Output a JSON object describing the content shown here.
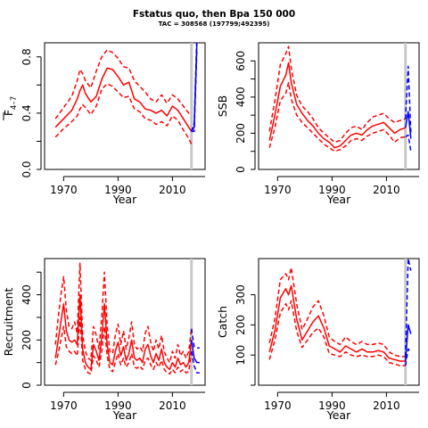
{
  "title": "Fstatus quo, then Bpa 150 000",
  "subtitle": "TAC = 308568 (197799;492395)",
  "colors": {
    "historical": "#ff0000",
    "projection": "#0000ff",
    "marker": "#c8c8c8"
  },
  "chart_data": [
    {
      "type": "line",
      "ylabel_main": "F",
      "ylabel_sub": "4–7",
      "xlabel": "Year",
      "xlim": [
        1963,
        2022
      ],
      "ylim": [
        0,
        0.9
      ],
      "xticks": [
        1970,
        1990,
        2010
      ],
      "yticks": [
        0.0,
        0.4,
        0.8
      ],
      "ytick_labels": [
        "0.0",
        "0.4",
        "0.8"
      ],
      "minor_yticks": [
        0.2,
        0.6
      ],
      "marker_year": 2017,
      "x": [
        1967,
        1970,
        1973,
        1975,
        1976,
        1977,
        1978,
        1980,
        1982,
        1984,
        1986,
        1988,
        1990,
        1992,
        1994,
        1996,
        1998,
        2000,
        2002,
        2004,
        2006,
        2008,
        2010,
        2012,
        2014,
        2016,
        2017
      ],
      "series": [
        {
          "role": "estimate",
          "values": [
            0.3,
            0.36,
            0.42,
            0.5,
            0.56,
            0.6,
            0.54,
            0.48,
            0.52,
            0.64,
            0.72,
            0.71,
            0.66,
            0.6,
            0.62,
            0.5,
            0.48,
            0.43,
            0.42,
            0.4,
            0.42,
            0.38,
            0.45,
            0.42,
            0.36,
            0.3,
            0.27
          ]
        },
        {
          "role": "upper",
          "values": [
            0.36,
            0.44,
            0.52,
            0.63,
            0.71,
            0.68,
            0.63,
            0.58,
            0.7,
            0.8,
            0.85,
            0.83,
            0.79,
            0.73,
            0.72,
            0.63,
            0.59,
            0.55,
            0.5,
            0.48,
            0.53,
            0.47,
            0.53,
            0.5,
            0.45,
            0.4,
            0.41
          ]
        },
        {
          "role": "lower",
          "values": [
            0.23,
            0.29,
            0.34,
            0.38,
            0.43,
            0.46,
            0.44,
            0.39,
            0.45,
            0.57,
            0.61,
            0.59,
            0.55,
            0.51,
            0.52,
            0.43,
            0.41,
            0.36,
            0.35,
            0.32,
            0.34,
            0.31,
            0.38,
            0.35,
            0.28,
            0.22,
            0.18
          ]
        }
      ],
      "projection": {
        "x": [
          2017,
          2018,
          2019
        ],
        "mid": [
          0.27,
          0.3,
          0.9
        ],
        "upper": [
          0.27,
          0.33,
          0.95
        ],
        "lower": [
          0.27,
          0.27,
          0.85
        ]
      }
    },
    {
      "type": "line",
      "ylabel_main": "SSB",
      "xlabel": "Year",
      "xlim": [
        1963,
        2022
      ],
      "ylim": [
        0,
        700
      ],
      "xticks": [
        1970,
        1990,
        2010
      ],
      "yticks": [
        0,
        200,
        400,
        600
      ],
      "ytick_labels": [
        "0",
        "200",
        "400",
        "600"
      ],
      "minor_yticks": [
        100,
        300,
        500
      ],
      "marker_year": 2017,
      "x": [
        1967,
        1969,
        1971,
        1973,
        1974,
        1975,
        1977,
        1979,
        1981,
        1983,
        1985,
        1987,
        1989,
        1991,
        1993,
        1995,
        1997,
        1999,
        2001,
        2003,
        2005,
        2007,
        2009,
        2011,
        2013,
        2015,
        2017
      ],
      "series": [
        {
          "role": "estimate",
          "values": [
            160,
            300,
            460,
            520,
            590,
            480,
            360,
            310,
            270,
            240,
            200,
            170,
            150,
            120,
            130,
            160,
            190,
            200,
            190,
            220,
            240,
            250,
            260,
            230,
            200,
            220,
            230
          ]
        },
        {
          "role": "upper",
          "values": [
            210,
            380,
            580,
            640,
            680,
            560,
            410,
            350,
            320,
            280,
            230,
            200,
            175,
            150,
            160,
            200,
            230,
            240,
            220,
            260,
            290,
            300,
            310,
            280,
            260,
            270,
            280
          ]
        },
        {
          "role": "lower",
          "values": [
            120,
            230,
            380,
            420,
            480,
            390,
            300,
            260,
            230,
            200,
            170,
            140,
            120,
            100,
            110,
            130,
            160,
            170,
            160,
            185,
            200,
            210,
            220,
            190,
            150,
            175,
            180
          ]
        }
      ],
      "projection": {
        "x": [
          2017,
          2018,
          2019
        ],
        "mid": [
          230,
          320,
          170
        ],
        "upper": [
          280,
          570,
          200
        ],
        "lower": [
          180,
          190,
          100
        ]
      }
    },
    {
      "type": "line",
      "ylabel_main": "Recruitment",
      "xlabel": "Year",
      "xlim": [
        1963,
        2022
      ],
      "ylim": [
        0,
        560
      ],
      "xticks": [
        1970,
        1990,
        2010
      ],
      "yticks": [
        0,
        200,
        400
      ],
      "ytick_labels": [
        "0",
        "200",
        "400"
      ],
      "minor_yticks": [
        100,
        300,
        500
      ],
      "marker_year": 2017,
      "x": [
        1967,
        1968,
        1969,
        1970,
        1971,
        1972,
        1973,
        1974,
        1975,
        1976,
        1977,
        1978,
        1979,
        1980,
        1981,
        1982,
        1983,
        1984,
        1985,
        1986,
        1987,
        1988,
        1989,
        1990,
        1991,
        1992,
        1993,
        1994,
        1995,
        1996,
        1997,
        1998,
        1999,
        2000,
        2001,
        2002,
        2003,
        2004,
        2005,
        2006,
        2007,
        2008,
        2009,
        2010,
        2011,
        2012,
        2013,
        2014,
        2015,
        2016,
        2017
      ],
      "series": [
        {
          "role": "estimate",
          "values": [
            120,
            200,
            280,
            360,
            240,
            200,
            190,
            200,
            180,
            400,
            160,
            100,
            80,
            70,
            180,
            150,
            110,
            210,
            360,
            180,
            100,
            90,
            150,
            190,
            130,
            170,
            110,
            140,
            200,
            120,
            110,
            120,
            100,
            160,
            180,
            130,
            100,
            140,
            110,
            160,
            100,
            80,
            70,
            100,
            80,
            120,
            90,
            100,
            80,
            100,
            200
          ]
        },
        {
          "role": "upper",
          "values": [
            180,
            300,
            400,
            480,
            330,
            260,
            250,
            280,
            230,
            540,
            220,
            150,
            120,
            110,
            260,
            220,
            160,
            300,
            500,
            260,
            150,
            140,
            220,
            270,
            180,
            240,
            160,
            210,
            280,
            180,
            160,
            170,
            150,
            230,
            260,
            190,
            150,
            200,
            160,
            220,
            150,
            120,
            100,
            150,
            120,
            180,
            130,
            150,
            120,
            150,
            250
          ]
        },
        {
          "role": "lower",
          "values": [
            90,
            140,
            200,
            260,
            170,
            150,
            140,
            150,
            130,
            300,
            110,
            70,
            55,
            50,
            130,
            110,
            80,
            150,
            260,
            130,
            70,
            60,
            100,
            140,
            90,
            120,
            80,
            100,
            140,
            80,
            75,
            85,
            70,
            110,
            120,
            90,
            70,
            100,
            80,
            110,
            70,
            55,
            50,
            70,
            55,
            80,
            60,
            70,
            55,
            60,
            150
          ]
        }
      ],
      "projection": {
        "x": [
          2017,
          2018,
          2019,
          2020
        ],
        "mid": [
          200,
          120,
          100,
          100
        ],
        "upper": [
          250,
          170,
          165,
          165
        ],
        "lower": [
          150,
          85,
          55,
          55
        ]
      }
    },
    {
      "type": "line",
      "ylabel_main": "Catch",
      "xlabel": "Year",
      "xlim": [
        1963,
        2022
      ],
      "ylim": [
        0,
        420
      ],
      "xticks": [
        1970,
        1990,
        2010
      ],
      "yticks": [
        100,
        200,
        300
      ],
      "ytick_labels": [
        "100",
        "200",
        "300"
      ],
      "minor_yticks": [
        0
      ],
      "marker_year": 2017,
      "x": [
        1967,
        1969,
        1971,
        1973,
        1974,
        1975,
        1977,
        1979,
        1981,
        1983,
        1985,
        1987,
        1989,
        1991,
        1993,
        1995,
        1997,
        1999,
        2001,
        2003,
        2005,
        2007,
        2009,
        2011,
        2013,
        2015,
        2017
      ],
      "series": [
        {
          "role": "estimate",
          "values": [
            110,
            180,
            290,
            320,
            300,
            330,
            220,
            150,
            180,
            210,
            230,
            190,
            130,
            120,
            110,
            130,
            120,
            110,
            120,
            110,
            110,
            115,
            110,
            90,
            85,
            80,
            80
          ]
        },
        {
          "role": "upper",
          "values": [
            140,
            220,
            350,
            370,
            350,
            390,
            270,
            185,
            220,
            260,
            280,
            230,
            160,
            145,
            135,
            160,
            145,
            135,
            145,
            135,
            135,
            140,
            135,
            110,
            100,
            95,
            95
          ]
        },
        {
          "role": "lower",
          "values": [
            85,
            150,
            240,
            270,
            250,
            280,
            180,
            125,
            150,
            175,
            190,
            160,
            105,
            100,
            95,
            110,
            100,
            95,
            100,
            95,
            95,
            100,
            95,
            75,
            70,
            65,
            65
          ]
        }
      ],
      "projection": {
        "x": [
          2017,
          2018,
          2019
        ],
        "mid": [
          80,
          200,
          170
        ],
        "upper": [
          95,
          420,
          380
        ],
        "lower": [
          65,
          120,
          110
        ]
      }
    }
  ]
}
